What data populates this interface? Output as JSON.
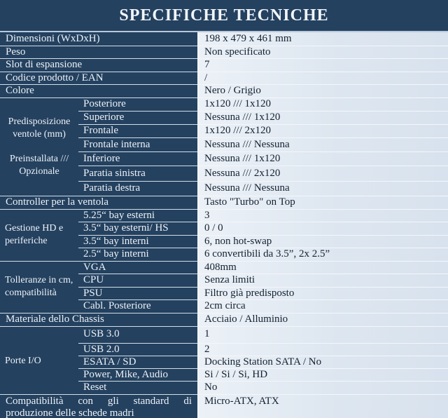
{
  "palette": {
    "header_bg": "#24415f",
    "label_bg": "#24415f",
    "label_text": "#edf2f8",
    "value_bg_light": "#ecf1f7",
    "value_bg_dark": "#d8e2ee",
    "value_text": "#132130",
    "separator_light": "#d3deea",
    "title_underline": "#b9c9da"
  },
  "header": {
    "title": "SPECIFICHE TECNICHE"
  },
  "simple_rows_top": [
    {
      "label": "Dimensioni (WxDxH)",
      "value": "198 x 479 x 461 mm"
    },
    {
      "label": "Peso",
      "value": "Non specificato"
    },
    {
      "label": "Slot di espansione",
      "value": "7"
    },
    {
      "label": "Codice prodotto / EAN",
      "value": "/"
    },
    {
      "label": "Colore",
      "value": "Nero / Grigio"
    }
  ],
  "ventole": {
    "label_top": "Predisposizione ventole (mm)",
    "label_bottom": "Preinstallata /// Opzionale",
    "rows": [
      {
        "label": "Posteriore",
        "value": "1x120 /// 1x120"
      },
      {
        "label": "Superiore",
        "value": "Nessuna /// 1x120"
      },
      {
        "label": "Frontale",
        "value": "1x120 /// 2x120"
      },
      {
        "label": "Frontale interna",
        "value": "Nessuna /// Nessuna"
      },
      {
        "label": "Inferiore",
        "value": "Nessuna /// 1x120"
      },
      {
        "label": "Paratia sinistra",
        "value": "Nessuna /// 2x120"
      },
      {
        "label": "Paratia destra",
        "value": "Nessuna /// Nessuna"
      }
    ]
  },
  "controller": {
    "label": "Controller per la ventola",
    "value": "Tasto \"Turbo\" on Top"
  },
  "gestione": {
    "label": "Gestione HD e periferiche",
    "rows": [
      {
        "label": "5.25“ bay esterni",
        "value": "3"
      },
      {
        "label": "3.5“ bay esterni/ HS",
        "value": "0 / 0"
      },
      {
        "label": "3.5“ bay interni",
        "value": "6, non hot-swap"
      },
      {
        "label": "2.5“ bay interni",
        "value": "6 convertibili da 3.5”, 2x 2.5”"
      }
    ]
  },
  "tolleranze": {
    "label": "Tolleranze in cm, compatibilità",
    "rows": [
      {
        "label": "VGA",
        "value": "408mm"
      },
      {
        "label": "CPU",
        "value": "Senza limiti"
      },
      {
        "label": "PSU",
        "value": "Filtro già predisposto"
      },
      {
        "label": "Cabl. Posteriore",
        "value": "2cm circa"
      }
    ]
  },
  "materiale": {
    "label": "Materiale dello Chassis",
    "value": "Acciaio / Alluminio"
  },
  "porte": {
    "label": "Porte I/O",
    "rows": [
      {
        "label": "USB 3.0",
        "value": "1"
      },
      {
        "label": "USB 2.0",
        "value": "2"
      },
      {
        "label": "ESATA / SD",
        "value": "Docking Station SATA / No"
      },
      {
        "label": "Power, Mike, Audio",
        "value": "Si / Si / Si, HD"
      },
      {
        "label": "Reset",
        "value": "No"
      }
    ]
  },
  "compatibilita": {
    "label": "Compatibilità con gli standard di produzione delle schede madri",
    "value": "Micro-ATX, ATX"
  }
}
